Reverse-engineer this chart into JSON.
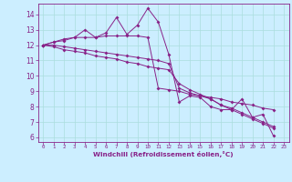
{
  "xlabel": "Windchill (Refroidissement éolien,°C)",
  "bg_color": "#cceeff",
  "line_color": "#882288",
  "grid_color": "#aadddd",
  "x_hours": [
    0,
    1,
    2,
    3,
    4,
    5,
    6,
    7,
    8,
    9,
    10,
    11,
    12,
    13,
    14,
    15,
    16,
    17,
    18,
    19,
    20,
    21,
    22,
    23
  ],
  "xlim": [
    -0.5,
    23.5
  ],
  "ylim": [
    5.7,
    14.7
  ],
  "yticks": [
    6,
    7,
    8,
    9,
    10,
    11,
    12,
    13,
    14
  ],
  "series1": [
    12.0,
    12.2,
    12.3,
    12.5,
    13.0,
    12.5,
    12.8,
    13.8,
    12.7,
    13.3,
    14.4,
    13.5,
    11.4,
    8.3,
    8.7,
    8.6,
    8.0,
    7.8,
    7.8,
    8.5,
    7.3,
    7.5,
    6.1,
    null
  ],
  "series2": [
    12.0,
    12.2,
    12.4,
    12.5,
    12.5,
    12.5,
    12.6,
    12.6,
    12.6,
    12.6,
    12.5,
    9.2,
    9.1,
    9.0,
    8.8,
    8.7,
    8.6,
    8.5,
    8.3,
    8.2,
    8.1,
    7.9,
    7.8,
    null
  ],
  "series3": [
    12.0,
    11.9,
    11.7,
    11.6,
    11.5,
    11.3,
    11.2,
    11.1,
    10.9,
    10.8,
    10.6,
    10.5,
    10.4,
    9.5,
    9.1,
    8.8,
    8.5,
    8.1,
    7.8,
    7.5,
    7.2,
    6.9,
    6.6,
    null
  ],
  "series4": [
    12.0,
    12.0,
    11.9,
    11.8,
    11.7,
    11.6,
    11.5,
    11.4,
    11.3,
    11.2,
    11.1,
    11.0,
    10.8,
    9.2,
    8.9,
    8.7,
    8.5,
    8.1,
    7.9,
    7.6,
    7.3,
    7.0,
    6.7,
    null
  ]
}
